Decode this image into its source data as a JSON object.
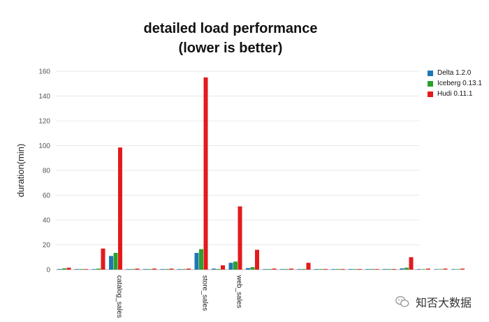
{
  "chart_data": {
    "type": "bar",
    "title": "detailed load performance",
    "subtitle": "(lower is better)",
    "xlabel": "",
    "ylabel": "duration(min)",
    "ylim": [
      0,
      160
    ],
    "yticks": [
      0,
      20,
      40,
      60,
      80,
      100,
      120,
      140,
      160
    ],
    "grid": true,
    "legend_position": "top-right",
    "categories": [
      "",
      "",
      "",
      "catalog_sales",
      "",
      "",
      "",
      "",
      "store_sales",
      "",
      "web_sales",
      "",
      "",
      "",
      "",
      "",
      "",
      "",
      "",
      "",
      "",
      "",
      "",
      ""
    ],
    "series": [
      {
        "name": "Delta 1.2.0",
        "color": "#1f77b4",
        "values": [
          0.5,
          0.1,
          0.2,
          11,
          0.1,
          0.1,
          0.1,
          0.1,
          13.5,
          0.8,
          5.5,
          1.2,
          0.2,
          0.2,
          0.2,
          0.2,
          0.1,
          0.1,
          0.1,
          0.1,
          1.0,
          0.2,
          0.2,
          0.1
        ]
      },
      {
        "name": "Iceberg 0.13.1",
        "color": "#2ca02c",
        "values": [
          1.0,
          0.2,
          0.8,
          13.5,
          0.2,
          0.2,
          0.2,
          0.2,
          16.5,
          0.5,
          6.5,
          2.0,
          0.3,
          0.3,
          0.5,
          0.3,
          0.2,
          0.2,
          0.2,
          0.3,
          1.5,
          0.3,
          0.3,
          0.2
        ]
      },
      {
        "name": "Hudi 0.11.1",
        "color": "#e31a1c",
        "values": [
          1.5,
          0.3,
          17,
          98.5,
          0.8,
          0.8,
          0.8,
          0.8,
          155,
          3.5,
          51,
          16,
          0.8,
          0.8,
          5.5,
          0.5,
          0.5,
          0.5,
          0.3,
          0.5,
          10,
          0.8,
          0.8,
          0.8
        ]
      }
    ]
  },
  "watermark": {
    "text": "知否大数据"
  }
}
